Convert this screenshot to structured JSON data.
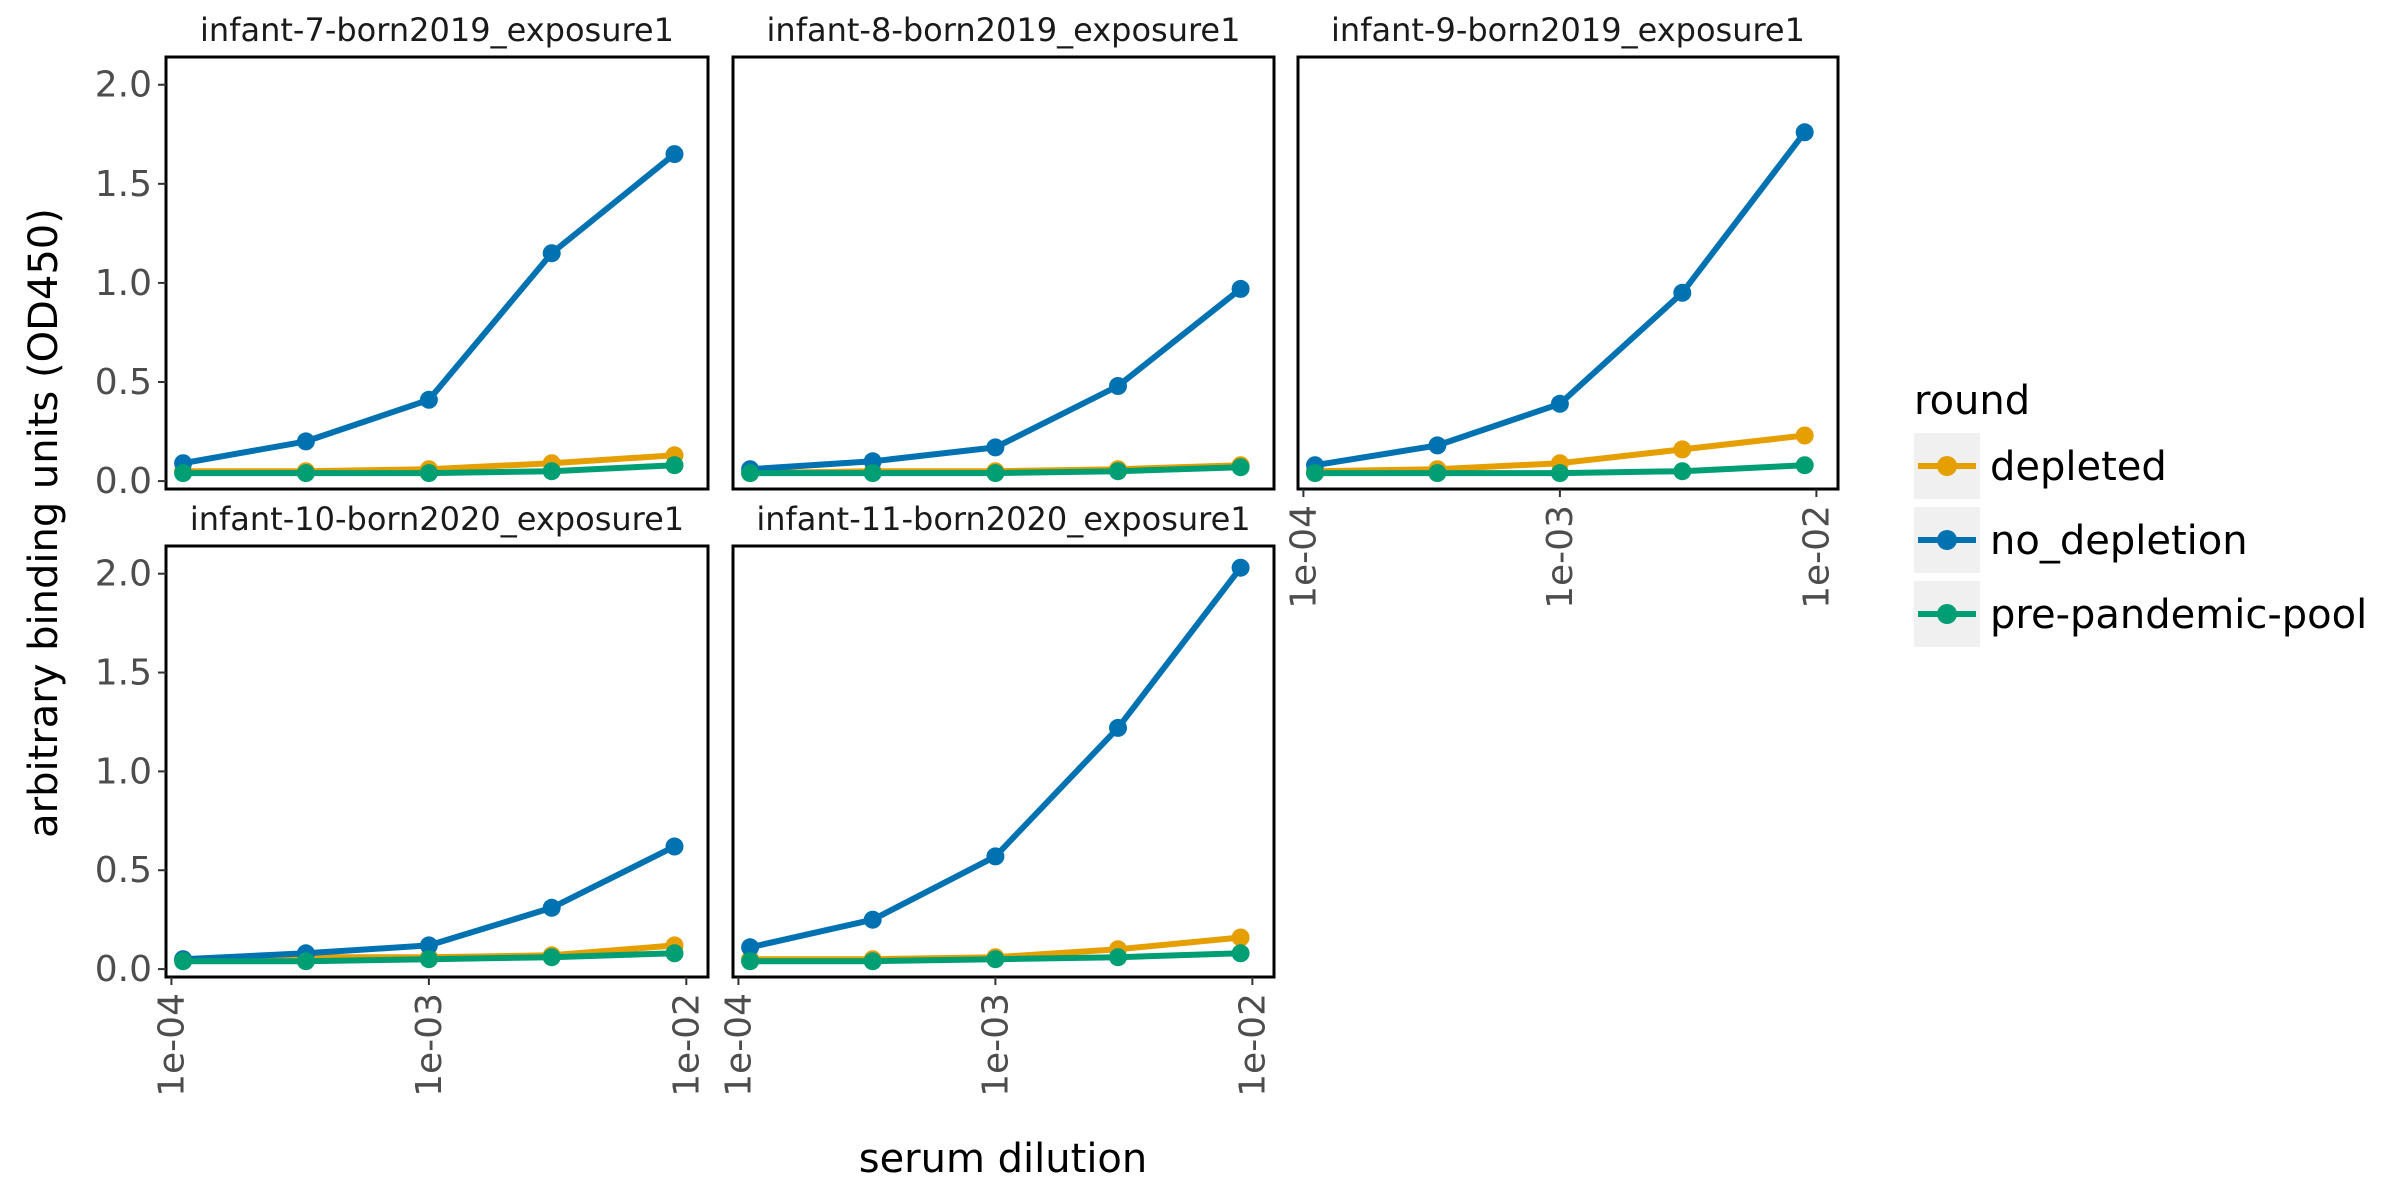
{
  "chart_data": {
    "type": "line",
    "xlabel": "serum dilution",
    "ylabel": "arbitrary binding units (OD450)",
    "x_scale": "log10",
    "xlim": [
      0.0001,
      0.01
    ],
    "ylim": [
      0,
      2.1
    ],
    "x_ticks": [
      {
        "value": 0.0001,
        "label": "1e-04"
      },
      {
        "value": 0.001,
        "label": "1e-03"
      },
      {
        "value": 0.01,
        "label": "1e-02"
      }
    ],
    "y_ticks": [
      {
        "value": 0.0,
        "label": "0.0"
      },
      {
        "value": 0.5,
        "label": "0.5"
      },
      {
        "value": 1.0,
        "label": "1.0"
      },
      {
        "value": 1.5,
        "label": "1.5"
      },
      {
        "value": 2.0,
        "label": "2.0"
      }
    ],
    "x": [
      0.000111,
      0.000333,
      0.001,
      0.003,
      0.009
    ],
    "grid": false,
    "legend": {
      "title": "round",
      "position": "right",
      "entries": [
        {
          "name": "depleted",
          "color": "#E69F00"
        },
        {
          "name": "no_depletion",
          "color": "#0072B2"
        },
        {
          "name": "pre-pandemic-pool",
          "color": "#009E73"
        }
      ]
    },
    "facets": [
      {
        "title": "infant-7-born2019_exposure1",
        "series": [
          {
            "name": "depleted",
            "values": [
              0.05,
              0.05,
              0.06,
              0.09,
              0.13
            ]
          },
          {
            "name": "no_depletion",
            "values": [
              0.09,
              0.2,
              0.41,
              1.15,
              1.65
            ]
          },
          {
            "name": "pre-pandemic-pool",
            "values": [
              0.04,
              0.04,
              0.04,
              0.05,
              0.08
            ]
          }
        ]
      },
      {
        "title": "infant-8-born2019_exposure1",
        "series": [
          {
            "name": "depleted",
            "values": [
              0.04,
              0.05,
              0.05,
              0.06,
              0.08
            ]
          },
          {
            "name": "no_depletion",
            "values": [
              0.06,
              0.1,
              0.17,
              0.48,
              0.97
            ]
          },
          {
            "name": "pre-pandemic-pool",
            "values": [
              0.04,
              0.04,
              0.04,
              0.05,
              0.07
            ]
          }
        ]
      },
      {
        "title": "infant-9-born2019_exposure1",
        "series": [
          {
            "name": "depleted",
            "values": [
              0.05,
              0.06,
              0.09,
              0.16,
              0.23
            ]
          },
          {
            "name": "no_depletion",
            "values": [
              0.08,
              0.18,
              0.39,
              0.95,
              1.76
            ]
          },
          {
            "name": "pre-pandemic-pool",
            "values": [
              0.04,
              0.04,
              0.04,
              0.05,
              0.08
            ]
          }
        ]
      },
      {
        "title": "infant-10-born2020_exposure1",
        "series": [
          {
            "name": "depleted",
            "values": [
              0.05,
              0.06,
              0.06,
              0.07,
              0.12
            ]
          },
          {
            "name": "no_depletion",
            "values": [
              0.05,
              0.08,
              0.12,
              0.31,
              0.62
            ]
          },
          {
            "name": "pre-pandemic-pool",
            "values": [
              0.04,
              0.04,
              0.05,
              0.06,
              0.08
            ]
          }
        ]
      },
      {
        "title": "infant-11-born2020_exposure1",
        "series": [
          {
            "name": "depleted",
            "values": [
              0.05,
              0.05,
              0.06,
              0.1,
              0.16
            ]
          },
          {
            "name": "no_depletion",
            "values": [
              0.11,
              0.25,
              0.57,
              1.22,
              2.03
            ]
          },
          {
            "name": "pre-pandemic-pool",
            "values": [
              0.04,
              0.04,
              0.05,
              0.06,
              0.08
            ]
          }
        ]
      }
    ]
  }
}
